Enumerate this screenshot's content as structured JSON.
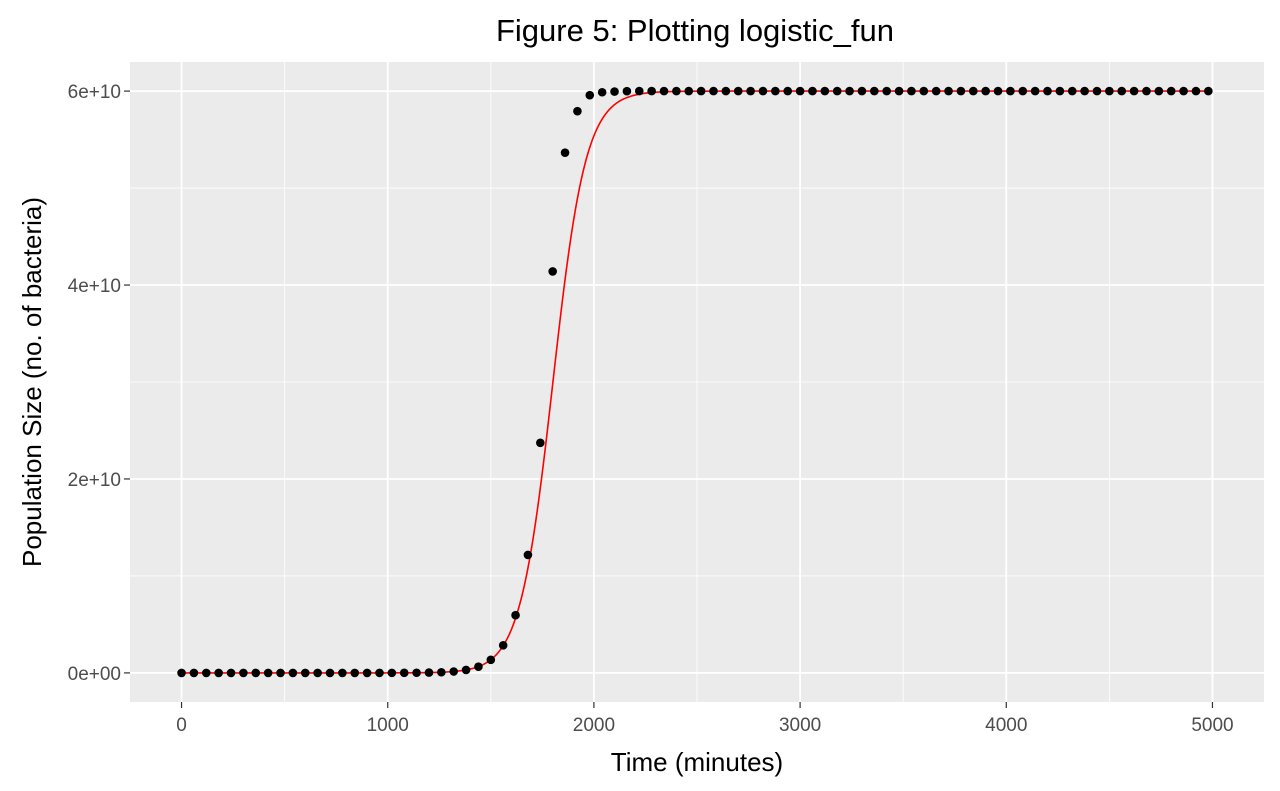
{
  "chart_data": {
    "type": "line",
    "title": "Figure 5: Plotting logistic_fun",
    "xlabel": "Time (minutes)",
    "ylabel": "Population Size (no. of bacteria)",
    "xlim": [
      -250,
      5250
    ],
    "ylim": [
      -3000000000,
      63000000000
    ],
    "x_ticks": [
      0,
      1000,
      2000,
      3000,
      4000,
      5000
    ],
    "x_tick_labels": [
      "0",
      "1000",
      "2000",
      "3000",
      "4000",
      "5000"
    ],
    "y_ticks": [
      0,
      20000000000,
      40000000000,
      60000000000
    ],
    "y_tick_labels": [
      "0e+00",
      "2e+10",
      "4e+10",
      "6e+10"
    ],
    "grid": true,
    "legend": "none",
    "colors": {
      "panel_background": "#ebebeb",
      "grid_major": "#ffffff",
      "line": "#ff0000",
      "points": "#000000"
    },
    "series": [
      {
        "kind": "line",
        "model": "logistic",
        "N0": 10,
        "K": 60000000000,
        "r": 0.0125,
        "x_start": 0,
        "x_end": 5000
      },
      {
        "kind": "points",
        "x_start": 0,
        "x_step": 60,
        "x_end": 4980,
        "y": [
          10,
          21,
          45,
          95,
          201,
          425,
          898,
          1899,
          4016,
          8490,
          17950,
          37950,
          80240,
          169650,
          358700,
          758400,
          1603400,
          3390000,
          7167000,
          15150000,
          32040000,
          67740000,
          143200000,
          302800000,
          640100000,
          1353000000,
          2850000000,
          5950000000,
          12170000000,
          23730000000,
          41400000000,
          53650000000,
          57930000000,
          59580000000,
          59880000000,
          59950000000,
          59990000000,
          60000000000,
          60000000000,
          60000000000,
          60000000000,
          60000000000,
          60000000000,
          60000000000,
          60000000000,
          60000000000,
          60000000000,
          60000000000,
          60000000000,
          60000000000,
          60000000000,
          60000000000,
          60000000000,
          60000000000,
          60000000000,
          60000000000,
          60000000000,
          60000000000,
          60000000000,
          60000000000,
          60000000000,
          60000000000,
          60000000000,
          60000000000,
          60000000000,
          60000000000,
          60000000000,
          60000000000,
          60000000000,
          60000000000,
          60000000000,
          60000000000,
          60000000000,
          60000000000,
          60000000000,
          60000000000,
          60000000000,
          60000000000,
          60000000000,
          60000000000,
          60000000000,
          60000000000,
          60000000000,
          60000000000
        ]
      }
    ]
  }
}
